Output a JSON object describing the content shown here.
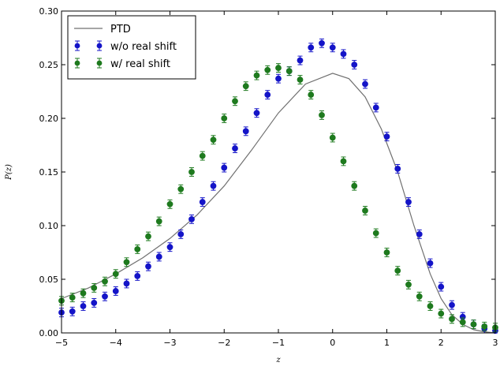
{
  "chart_data": {
    "type": "scatter",
    "xlabel": "z",
    "ylabel": "P(z)",
    "xlim": [
      -5,
      3
    ],
    "ylim": [
      0,
      0.3
    ],
    "xticks": [
      -5,
      -4,
      -3,
      -2,
      -1,
      0,
      1,
      2,
      3
    ],
    "xtick_labels": [
      "−5",
      "−4",
      "−3",
      "−2",
      "−1",
      "0",
      "1",
      "2",
      "3"
    ],
    "yticks": [
      0,
      0.05,
      0.1,
      0.15,
      0.2,
      0.25,
      0.3
    ],
    "ytick_labels": [
      "0.00",
      "0.05",
      "0.10",
      "0.15",
      "0.20",
      "0.25",
      "0.30"
    ],
    "grid": false,
    "legend_position": "top-left",
    "series": [
      {
        "name": "PTD",
        "kind": "line",
        "color": "#707070",
        "x": [
          -5.0,
          -4.5,
          -4.0,
          -3.5,
          -3.0,
          -2.5,
          -2.0,
          -1.5,
          -1.0,
          -0.5,
          0.0,
          0.3,
          0.6,
          0.9,
          1.2,
          1.5,
          1.8,
          2.0,
          2.2,
          2.4,
          2.6,
          2.8,
          3.0
        ],
        "y": [
          0.032,
          0.042,
          0.055,
          0.07,
          0.088,
          0.11,
          0.137,
          0.17,
          0.205,
          0.232,
          0.242,
          0.237,
          0.22,
          0.19,
          0.15,
          0.1,
          0.055,
          0.032,
          0.017,
          0.008,
          0.003,
          0.001,
          0.0
        ]
      },
      {
        "name": "w/o real shift",
        "kind": "errorbar",
        "color": "#1414c8",
        "x": [
          -5.0,
          -4.8,
          -4.6,
          -4.4,
          -4.2,
          -4.0,
          -3.8,
          -3.6,
          -3.4,
          -3.2,
          -3.0,
          -2.8,
          -2.6,
          -2.4,
          -2.2,
          -2.0,
          -1.8,
          -1.6,
          -1.4,
          -1.2,
          -1.0,
          -0.8,
          -0.6,
          -0.4,
          -0.2,
          0.0,
          0.2,
          0.4,
          0.6,
          0.8,
          1.0,
          1.2,
          1.4,
          1.6,
          1.8,
          2.0,
          2.2,
          2.4,
          2.6,
          2.8,
          3.0
        ],
        "y": [
          0.019,
          0.02,
          0.025,
          0.028,
          0.034,
          0.039,
          0.046,
          0.053,
          0.062,
          0.071,
          0.08,
          0.092,
          0.106,
          0.122,
          0.137,
          0.154,
          0.172,
          0.188,
          0.205,
          0.222,
          0.237,
          0.244,
          0.254,
          0.266,
          0.27,
          0.266,
          0.26,
          0.25,
          0.232,
          0.21,
          0.183,
          0.153,
          0.122,
          0.092,
          0.065,
          0.043,
          0.026,
          0.015,
          0.008,
          0.004,
          0.002
        ],
        "yerr": 0.004
      },
      {
        "name": "w/ real shift",
        "kind": "errorbar",
        "color": "#1e7a1e",
        "x": [
          -5.0,
          -4.8,
          -4.6,
          -4.4,
          -4.2,
          -4.0,
          -3.8,
          -3.6,
          -3.4,
          -3.2,
          -3.0,
          -2.8,
          -2.6,
          -2.4,
          -2.2,
          -2.0,
          -1.8,
          -1.6,
          -1.4,
          -1.2,
          -1.0,
          -0.8,
          -0.6,
          -0.4,
          -0.2,
          0.0,
          0.2,
          0.4,
          0.6,
          0.8,
          1.0,
          1.2,
          1.4,
          1.6,
          1.8,
          2.0,
          2.2,
          2.4,
          2.6,
          2.8,
          3.0
        ],
        "y": [
          0.03,
          0.033,
          0.037,
          0.042,
          0.048,
          0.055,
          0.066,
          0.078,
          0.09,
          0.104,
          0.12,
          0.134,
          0.15,
          0.165,
          0.18,
          0.2,
          0.216,
          0.23,
          0.24,
          0.245,
          0.247,
          0.244,
          0.236,
          0.222,
          0.203,
          0.182,
          0.16,
          0.137,
          0.114,
          0.093,
          0.075,
          0.058,
          0.045,
          0.034,
          0.025,
          0.018,
          0.013,
          0.01,
          0.008,
          0.006,
          0.005
        ],
        "yerr": 0.004
      }
    ]
  }
}
